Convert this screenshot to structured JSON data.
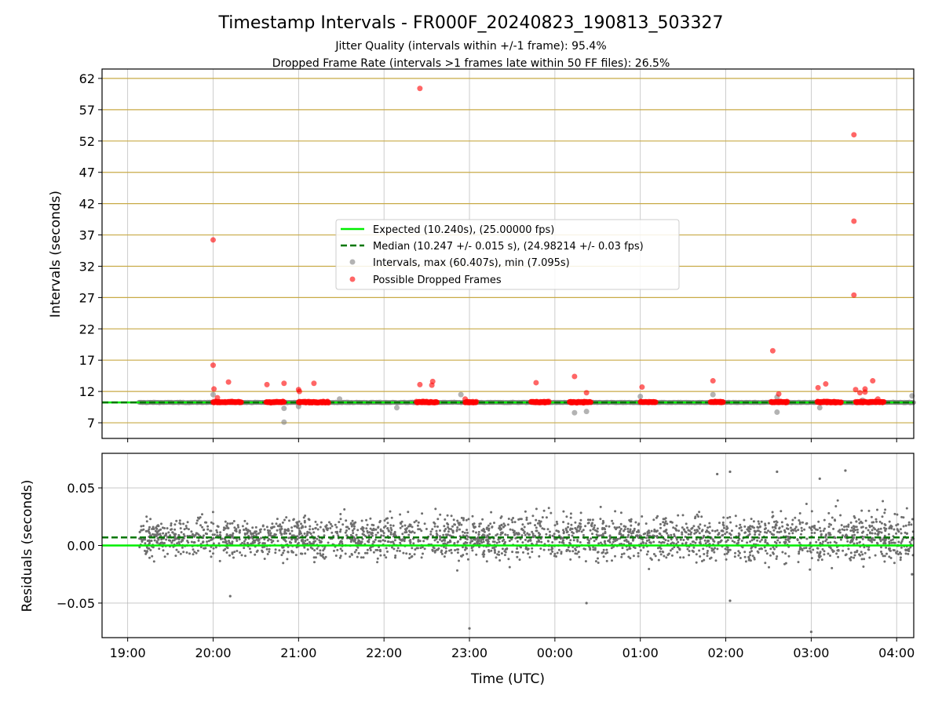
{
  "chart_data": {
    "type": "scatter",
    "title": "Timestamp Intervals - FR000F_20240823_190813_503327",
    "subtitle_lines": [
      "Jitter Quality (intervals within +/-1 frame): 95.4%",
      "Dropped Frame Rate (intervals >1 frames late within 50 FF files): 26.5%"
    ],
    "xlabel": "Time (UTC)",
    "x_tick_labels": [
      "19:00",
      "20:00",
      "21:00",
      "22:00",
      "23:00",
      "00:00",
      "01:00",
      "02:00",
      "03:00",
      "04:00"
    ],
    "x_range_hours": [
      18.7,
      28.2
    ],
    "x_data_range_hours": [
      19.13,
      28.2
    ],
    "grid": true,
    "legend_placement": "center",
    "colors": {
      "expected": "#00ee00",
      "median": "#007700",
      "intervals": "#808080",
      "dropped": "#ff0000",
      "threshold_lines": "#c8aa46"
    },
    "top": {
      "ylabel": "Intervals (seconds)",
      "ylim": [
        4.5,
        63.5
      ],
      "y_ticks": [
        7,
        12,
        17,
        22,
        27,
        32,
        37,
        42,
        47,
        52,
        57,
        62
      ],
      "y_tick_labels": [
        "7",
        "12",
        "17",
        "22",
        "27",
        "32",
        "37",
        "42",
        "47",
        "52",
        "57",
        "62"
      ],
      "threshold_lines": [
        7,
        12,
        17,
        22,
        27,
        32,
        37,
        42,
        47,
        52,
        57,
        62
      ],
      "expected": 10.24,
      "median": 10.247,
      "legend": [
        "Expected (10.240s), (25.00000 fps)",
        "Median (10.247 +/- 0.015 s), (24.98214 +/- 0.03 fps)",
        "Intervals, max (60.407s), min (7.095s)",
        "Possible Dropped Frames"
      ],
      "gray_outliers": [
        {
          "x": 20.0,
          "y": 11.5
        },
        {
          "x": 20.83,
          "y": 7.1
        },
        {
          "x": 20.83,
          "y": 9.3
        },
        {
          "x": 21.0,
          "y": 9.6
        },
        {
          "x": 21.48,
          "y": 10.8
        },
        {
          "x": 22.15,
          "y": 9.4
        },
        {
          "x": 22.9,
          "y": 11.5
        },
        {
          "x": 24.23,
          "y": 8.6
        },
        {
          "x": 24.37,
          "y": 8.8
        },
        {
          "x": 25.0,
          "y": 11.2
        },
        {
          "x": 25.85,
          "y": 11.5
        },
        {
          "x": 26.6,
          "y": 8.7
        },
        {
          "x": 26.6,
          "y": 11.1
        },
        {
          "x": 27.1,
          "y": 9.4
        },
        {
          "x": 27.6,
          "y": 10.6
        },
        {
          "x": 28.18,
          "y": 11.3
        }
      ],
      "red_clusters": [
        {
          "x0": 20.0,
          "x1": 20.33
        },
        {
          "x0": 20.62,
          "x1": 20.83
        },
        {
          "x0": 21.0,
          "x1": 21.35
        },
        {
          "x0": 22.38,
          "x1": 22.62
        },
        {
          "x0": 22.95,
          "x1": 23.08
        },
        {
          "x0": 23.72,
          "x1": 23.93
        },
        {
          "x0": 24.17,
          "x1": 24.42
        },
        {
          "x0": 25.0,
          "x1": 25.18
        },
        {
          "x0": 25.82,
          "x1": 25.97
        },
        {
          "x0": 26.53,
          "x1": 26.72
        },
        {
          "x0": 27.07,
          "x1": 27.35
        },
        {
          "x0": 27.52,
          "x1": 27.85
        }
      ],
      "red_outliers": [
        {
          "x": 20.0,
          "y": 36.2
        },
        {
          "x": 20.0,
          "y": 16.2
        },
        {
          "x": 20.01,
          "y": 12.4
        },
        {
          "x": 20.05,
          "y": 11.0
        },
        {
          "x": 20.18,
          "y": 13.5
        },
        {
          "x": 20.63,
          "y": 13.1
        },
        {
          "x": 20.83,
          "y": 13.3
        },
        {
          "x": 21.0,
          "y": 12.3
        },
        {
          "x": 21.01,
          "y": 12.0
        },
        {
          "x": 21.18,
          "y": 13.3
        },
        {
          "x": 22.42,
          "y": 60.4
        },
        {
          "x": 22.42,
          "y": 13.1
        },
        {
          "x": 22.57,
          "y": 13.6
        },
        {
          "x": 22.56,
          "y": 13.0
        },
        {
          "x": 22.95,
          "y": 10.8
        },
        {
          "x": 23.78,
          "y": 13.4
        },
        {
          "x": 24.23,
          "y": 14.4
        },
        {
          "x": 24.37,
          "y": 11.8
        },
        {
          "x": 25.02,
          "y": 12.7
        },
        {
          "x": 25.85,
          "y": 13.7
        },
        {
          "x": 26.55,
          "y": 18.5
        },
        {
          "x": 26.62,
          "y": 11.6
        },
        {
          "x": 27.08,
          "y": 12.6
        },
        {
          "x": 27.17,
          "y": 13.2
        },
        {
          "x": 27.5,
          "y": 53.0
        },
        {
          "x": 27.5,
          "y": 39.2
        },
        {
          "x": 27.5,
          "y": 27.4
        },
        {
          "x": 27.52,
          "y": 12.3
        },
        {
          "x": 27.57,
          "y": 11.8
        },
        {
          "x": 27.63,
          "y": 12.4
        },
        {
          "x": 27.63,
          "y": 11.9
        },
        {
          "x": 27.72,
          "y": 13.7
        },
        {
          "x": 27.78,
          "y": 10.8
        }
      ]
    },
    "bottom": {
      "ylabel": "Residuals (seconds)",
      "ylim": [
        -0.08,
        0.08
      ],
      "y_ticks": [
        -0.05,
        0.0,
        0.05
      ],
      "y_tick_labels": [
        "−0.05",
        "0.00",
        "0.05"
      ],
      "expected": 0.0,
      "median": 0.007,
      "residual_spread": 0.012,
      "point_count": 2600,
      "extreme_points": [
        {
          "x": 20.2,
          "y": -0.044
        },
        {
          "x": 23.0,
          "y": -0.072
        },
        {
          "x": 24.37,
          "y": -0.05
        },
        {
          "x": 25.9,
          "y": 0.062
        },
        {
          "x": 26.05,
          "y": 0.064
        },
        {
          "x": 26.6,
          "y": 0.064
        },
        {
          "x": 27.0,
          "y": -0.075
        },
        {
          "x": 27.1,
          "y": 0.058
        },
        {
          "x": 27.4,
          "y": 0.065
        },
        {
          "x": 26.05,
          "y": -0.048
        },
        {
          "x": 28.18,
          "y": -0.025
        }
      ]
    }
  }
}
